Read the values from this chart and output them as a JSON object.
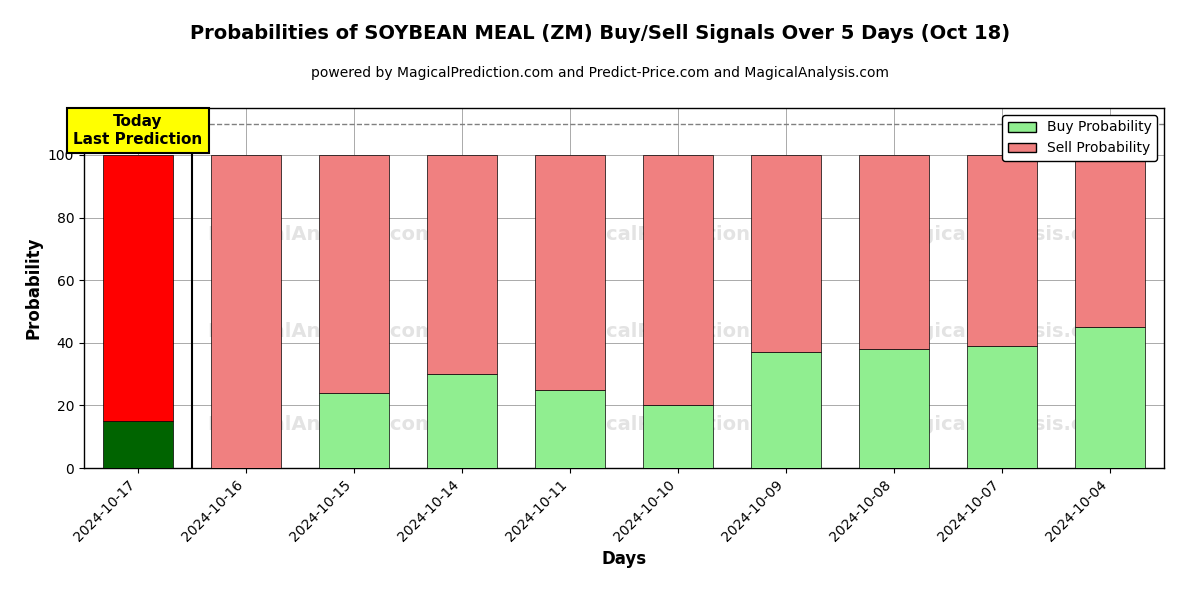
{
  "title": "Probabilities of SOYBEAN MEAL (ZM) Buy/Sell Signals Over 5 Days (Oct 18)",
  "subtitle": "powered by MagicalPrediction.com and Predict-Price.com and MagicalAnalysis.com",
  "xlabel": "Days",
  "ylabel": "Probability",
  "categories": [
    "2024-10-17",
    "2024-10-16",
    "2024-10-15",
    "2024-10-14",
    "2024-10-11",
    "2024-10-10",
    "2024-10-09",
    "2024-10-08",
    "2024-10-07",
    "2024-10-04"
  ],
  "buy_values": [
    15,
    0,
    24,
    30,
    25,
    20,
    37,
    38,
    39,
    45
  ],
  "sell_values": [
    85,
    100,
    76,
    70,
    75,
    80,
    63,
    62,
    61,
    55
  ],
  "buy_color_today": "#006400",
  "sell_color_today": "#ff0000",
  "buy_color_normal": "#90ee90",
  "sell_color_normal": "#f08080",
  "today_box_color": "#ffff00",
  "today_label": "Today\nLast Prediction",
  "dashed_line_y": 110,
  "ylim": [
    0,
    115
  ],
  "yticks": [
    0,
    20,
    40,
    60,
    80,
    100
  ],
  "background_color": "#ffffff",
  "grid_color": "#aaaaaa",
  "title_fontsize": 14,
  "subtitle_fontsize": 10,
  "axis_label_fontsize": 12,
  "tick_fontsize": 10,
  "legend_fontsize": 10,
  "bar_width": 0.65
}
